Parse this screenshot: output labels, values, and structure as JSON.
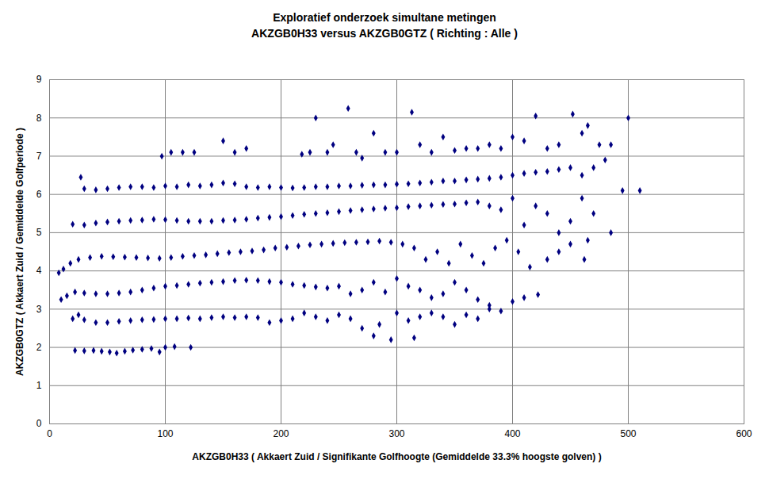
{
  "chart_data": {
    "type": "scatter",
    "title": "Exploratief onderzoek simultane metingen",
    "subtitle": "AKZGB0H33 versus AKZGB0GTZ ( Richting : Alle )",
    "x_label": "AKZGB0H33 ( Akkaert Zuid / Signifikante Golfhoogte (Gemiddelde 33.3% hoogste golven) )",
    "y_label": "AKZGB0GTZ ( Akkaert Zuid / Gemiddelde Golfperiode )",
    "color": "#000080",
    "marker": "diamond",
    "grid": true,
    "xlim": [
      0,
      600
    ],
    "xticks": [
      0,
      100,
      200,
      300,
      400,
      500,
      600
    ],
    "ylim": [
      0,
      9
    ],
    "yticks": [
      0,
      1,
      2,
      3,
      4,
      5,
      6,
      7,
      8,
      9
    ],
    "x": [
      22,
      30,
      38,
      45,
      52,
      58,
      65,
      72,
      80,
      88,
      95,
      100,
      108,
      122,
      20,
      25,
      30,
      40,
      50,
      60,
      70,
      80,
      90,
      100,
      110,
      120,
      130,
      140,
      150,
      160,
      170,
      180,
      190,
      200,
      210,
      220,
      230,
      240,
      250,
      260,
      270,
      280,
      285,
      295,
      300,
      310,
      315,
      320,
      330,
      340,
      350,
      360,
      370,
      380,
      390,
      10,
      15,
      22,
      30,
      40,
      50,
      60,
      70,
      80,
      90,
      100,
      110,
      120,
      130,
      140,
      150,
      160,
      170,
      180,
      190,
      200,
      210,
      220,
      230,
      240,
      250,
      260,
      270,
      280,
      290,
      300,
      310,
      320,
      330,
      340,
      350,
      360,
      370,
      380,
      400,
      410,
      422,
      8,
      12,
      18,
      25,
      35,
      45,
      55,
      65,
      75,
      85,
      95,
      105,
      115,
      125,
      135,
      145,
      155,
      165,
      175,
      185,
      195,
      205,
      215,
      225,
      235,
      245,
      255,
      265,
      275,
      285,
      295,
      305,
      315,
      325,
      335,
      345,
      355,
      365,
      375,
      385,
      395,
      405,
      415,
      430,
      440,
      450,
      462,
      465,
      20,
      30,
      40,
      50,
      60,
      70,
      80,
      90,
      100,
      110,
      120,
      130,
      140,
      150,
      160,
      170,
      180,
      190,
      200,
      210,
      220,
      230,
      240,
      250,
      260,
      270,
      280,
      290,
      300,
      310,
      320,
      330,
      340,
      350,
      360,
      370,
      380,
      390,
      400,
      410,
      420,
      430,
      440,
      450,
      460,
      470,
      485,
      27,
      30,
      40,
      50,
      60,
      70,
      80,
      90,
      100,
      110,
      120,
      130,
      140,
      150,
      160,
      170,
      180,
      190,
      200,
      210,
      220,
      230,
      240,
      250,
      260,
      270,
      280,
      290,
      300,
      310,
      320,
      330,
      340,
      350,
      360,
      370,
      380,
      390,
      400,
      410,
      420,
      430,
      440,
      450,
      460,
      470,
      480,
      495,
      510,
      97,
      105,
      115,
      125,
      150,
      160,
      170,
      218,
      225,
      230,
      240,
      245,
      258,
      265,
      270,
      280,
      290,
      300,
      313,
      320,
      330,
      340,
      350,
      360,
      370,
      380,
      390,
      400,
      410,
      420,
      430,
      440,
      452,
      460,
      465,
      475,
      485,
      500
    ],
    "values": [
      1.92,
      1.91,
      1.92,
      1.9,
      1.88,
      1.85,
      1.9,
      1.93,
      1.95,
      1.97,
      1.88,
      2.0,
      2.02,
      2.0,
      2.75,
      2.85,
      2.72,
      2.65,
      2.65,
      2.68,
      2.7,
      2.72,
      2.73,
      2.75,
      2.75,
      2.77,
      2.75,
      2.78,
      2.8,
      2.78,
      2.8,
      2.78,
      2.65,
      2.7,
      2.75,
      2.9,
      2.8,
      2.7,
      2.85,
      2.75,
      2.5,
      2.3,
      2.6,
      2.2,
      2.9,
      2.7,
      2.25,
      2.8,
      2.9,
      2.8,
      2.6,
      2.85,
      2.75,
      3.0,
      2.95,
      3.25,
      3.35,
      3.45,
      3.42,
      3.4,
      3.4,
      3.42,
      3.45,
      3.5,
      3.55,
      3.6,
      3.62,
      3.65,
      3.68,
      3.7,
      3.72,
      3.75,
      3.76,
      3.75,
      3.72,
      3.7,
      3.65,
      3.62,
      3.58,
      3.55,
      3.6,
      3.4,
      3.5,
      3.7,
      3.45,
      3.8,
      3.6,
      3.5,
      3.3,
      3.4,
      3.7,
      3.5,
      3.25,
      3.1,
      3.2,
      3.3,
      3.38,
      3.95,
      4.05,
      4.2,
      4.3,
      4.35,
      4.38,
      4.37,
      4.36,
      4.35,
      4.34,
      4.33,
      4.35,
      4.38,
      4.4,
      4.42,
      4.45,
      4.48,
      4.5,
      4.52,
      4.55,
      4.6,
      4.62,
      4.65,
      4.68,
      4.7,
      4.72,
      4.74,
      4.75,
      4.76,
      4.78,
      4.75,
      4.7,
      4.6,
      4.3,
      4.5,
      4.2,
      4.7,
      4.4,
      4.2,
      4.6,
      4.8,
      4.5,
      4.1,
      4.3,
      4.5,
      4.7,
      4.3,
      4.8,
      5.22,
      5.2,
      5.25,
      5.28,
      5.3,
      5.32,
      5.33,
      5.35,
      5.34,
      5.32,
      5.3,
      5.3,
      5.3,
      5.32,
      5.33,
      5.35,
      5.38,
      5.4,
      5.42,
      5.45,
      5.48,
      5.5,
      5.52,
      5.55,
      5.58,
      5.6,
      5.62,
      5.64,
      5.65,
      5.68,
      5.7,
      5.72,
      5.74,
      5.75,
      5.78,
      5.8,
      5.7,
      5.6,
      5.9,
      5.2,
      5.7,
      5.5,
      5.0,
      5.3,
      5.9,
      5.5,
      5.0,
      6.45,
      6.15,
      6.12,
      6.15,
      6.18,
      6.2,
      6.2,
      6.18,
      6.22,
      6.2,
      6.25,
      6.22,
      6.25,
      6.3,
      6.28,
      6.2,
      6.18,
      6.2,
      6.18,
      6.17,
      6.18,
      6.2,
      6.2,
      6.22,
      6.22,
      6.24,
      6.25,
      6.25,
      6.27,
      6.28,
      6.3,
      6.32,
      6.35,
      6.35,
      6.38,
      6.4,
      6.42,
      6.45,
      6.5,
      6.55,
      6.58,
      6.6,
      6.65,
      6.7,
      6.5,
      6.7,
      6.9,
      6.1,
      6.1,
      7.0,
      7.1,
      7.1,
      7.1,
      7.4,
      7.1,
      7.2,
      7.05,
      7.1,
      8.0,
      7.1,
      7.3,
      8.25,
      7.1,
      6.95,
      7.6,
      7.1,
      7.1,
      8.15,
      7.3,
      7.1,
      7.5,
      7.15,
      7.2,
      7.2,
      7.3,
      7.2,
      7.5,
      7.4,
      8.05,
      7.2,
      7.3,
      8.1,
      7.6,
      7.8,
      7.3,
      7.3,
      8.0
    ]
  }
}
